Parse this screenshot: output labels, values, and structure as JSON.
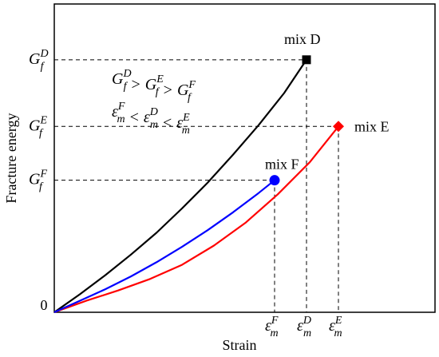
{
  "chart_data": {
    "type": "line",
    "xlabel": "Strain",
    "ylabel": "Fracture energy",
    "origin_label": "0",
    "grid": false,
    "legend": "none",
    "series": [
      {
        "name": "mix D",
        "color": "#000000",
        "marker": "square",
        "x": [
          0,
          0.08,
          0.16,
          0.24,
          0.32,
          0.4,
          0.48,
          0.56,
          0.64,
          0.72,
          0.79
        ],
        "y": [
          0,
          0.07,
          0.145,
          0.225,
          0.31,
          0.405,
          0.505,
          0.615,
          0.73,
          0.855,
          0.985
        ]
      },
      {
        "name": "mix E",
        "color": "#ff0000",
        "marker": "diamond",
        "x": [
          0,
          0.1,
          0.2,
          0.3,
          0.4,
          0.5,
          0.6,
          0.7,
          0.8,
          0.89
        ],
        "y": [
          0,
          0.045,
          0.085,
          0.13,
          0.185,
          0.26,
          0.35,
          0.46,
          0.585,
          0.725
        ]
      },
      {
        "name": "mix F",
        "color": "#0000ff",
        "marker": "circle",
        "x": [
          0,
          0.08,
          0.16,
          0.24,
          0.32,
          0.4,
          0.48,
          0.56,
          0.64,
          0.69
        ],
        "y": [
          0,
          0.045,
          0.09,
          0.14,
          0.195,
          0.255,
          0.32,
          0.39,
          0.465,
          0.515
        ]
      }
    ],
    "endpoints": [
      {
        "series": "mix D",
        "y_tick": "G_f^D",
        "x_tick": "ε_m^D"
      },
      {
        "series": "mix E",
        "y_tick": "G_f^E",
        "x_tick": "ε_m^E"
      },
      {
        "series": "mix F",
        "y_tick": "G_f^F",
        "x_tick": "ε_m^F"
      }
    ],
    "annotations": [
      "G_f^D > G_f^E > G_f^F",
      "ε_m^F < ε_m^D < ε_m^E"
    ]
  }
}
